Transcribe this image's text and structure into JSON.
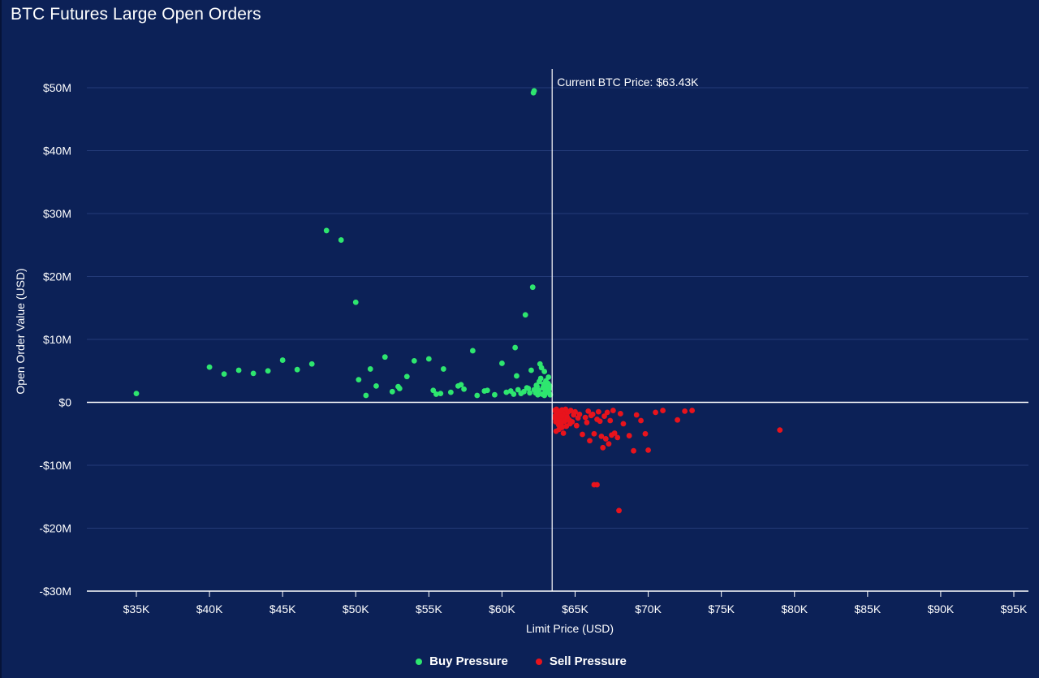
{
  "chart_data": {
    "type": "scatter",
    "title": "BTC Futures Large Open Orders",
    "xlabel": "Limit Price (USD)",
    "ylabel": "Open Order Value (USD)",
    "xlim": [
      33000,
      96000
    ],
    "ylim": [
      -30,
      55
    ],
    "x_ticks": [
      35000,
      40000,
      45000,
      50000,
      55000,
      60000,
      65000,
      70000,
      75000,
      80000,
      85000,
      90000,
      95000
    ],
    "x_tick_labels": [
      "$35K",
      "$40K",
      "$45K",
      "$50K",
      "$55K",
      "$60K",
      "$65K",
      "$70K",
      "$75K",
      "$80K",
      "$85K",
      "$90K",
      "$95K"
    ],
    "y_ticks": [
      50,
      40,
      30,
      20,
      10,
      0,
      -10,
      -20,
      -30
    ],
    "y_tick_labels": [
      "$50M",
      "$40M",
      "$30M",
      "$20M",
      "$10M",
      "$0",
      "-$10M",
      "-$20M",
      "-$30M"
    ],
    "grid": true,
    "legend_position": "bottom-center",
    "current_price": {
      "value": 63430,
      "label": "Current BTC Price: $63.43K"
    },
    "series": [
      {
        "name": "Buy Pressure",
        "color": "#2ee66f",
        "points": [
          [
            35000,
            1.4
          ],
          [
            40000,
            5.6
          ],
          [
            41000,
            4.5
          ],
          [
            42000,
            5.1
          ],
          [
            43000,
            4.6
          ],
          [
            44000,
            5.0
          ],
          [
            45000,
            6.7
          ],
          [
            46000,
            5.2
          ],
          [
            47000,
            6.1
          ],
          [
            48000,
            27.3
          ],
          [
            49000,
            25.8
          ],
          [
            50000,
            15.9
          ],
          [
            50200,
            3.6
          ],
          [
            50700,
            1.1
          ],
          [
            51000,
            5.3
          ],
          [
            51400,
            2.6
          ],
          [
            52000,
            7.2
          ],
          [
            52500,
            1.7
          ],
          [
            52900,
            2.5
          ],
          [
            53000,
            2.2
          ],
          [
            53500,
            4.1
          ],
          [
            54000,
            6.6
          ],
          [
            55000,
            6.9
          ],
          [
            55300,
            1.9
          ],
          [
            55500,
            1.3
          ],
          [
            55800,
            1.4
          ],
          [
            56000,
            5.3
          ],
          [
            56500,
            1.6
          ],
          [
            57000,
            2.6
          ],
          [
            57200,
            2.8
          ],
          [
            57400,
            2.1
          ],
          [
            58000,
            8.2
          ],
          [
            58300,
            1.1
          ],
          [
            58800,
            1.8
          ],
          [
            59000,
            1.9
          ],
          [
            59500,
            1.2
          ],
          [
            60000,
            6.2
          ],
          [
            60300,
            1.6
          ],
          [
            60600,
            1.8
          ],
          [
            60900,
            8.7
          ],
          [
            61000,
            4.2
          ],
          [
            61100,
            2.0
          ],
          [
            61300,
            1.4
          ],
          [
            61500,
            1.7
          ],
          [
            61600,
            13.9
          ],
          [
            61800,
            2.2
          ],
          [
            62000,
            5.1
          ],
          [
            62100,
            18.3
          ],
          [
            62150,
            49.2
          ],
          [
            62200,
            49.5
          ],
          [
            62300,
            1.5
          ],
          [
            62400,
            2.5
          ],
          [
            62500,
            1.9
          ],
          [
            62600,
            6.1
          ],
          [
            62700,
            5.5
          ],
          [
            62800,
            2.3
          ],
          [
            62900,
            4.9
          ],
          [
            62950,
            1.6
          ],
          [
            63000,
            3.4
          ],
          [
            63050,
            2.8
          ],
          [
            63100,
            1.8
          ],
          [
            63150,
            3.0
          ],
          [
            63200,
            1.5
          ],
          [
            63250,
            2.2
          ],
          [
            63300,
            1.2
          ],
          [
            62650,
            3.8
          ],
          [
            62750,
            1.3
          ],
          [
            62850,
            2.9
          ],
          [
            63020,
            1.9
          ],
          [
            63120,
            2.5
          ],
          [
            62450,
            1.2
          ],
          [
            62550,
            3.3
          ],
          [
            61900,
            1.5
          ],
          [
            61700,
            2.3
          ],
          [
            60800,
            1.3
          ],
          [
            62200,
            2.0
          ],
          [
            62350,
            2.7
          ],
          [
            63180,
            4.0
          ],
          [
            63280,
            2.6
          ],
          [
            62900,
            1.1
          ]
        ]
      },
      {
        "name": "Sell Pressure",
        "color": "#e8131c",
        "points": [
          [
            63600,
            -1.3
          ],
          [
            63650,
            -2.1
          ],
          [
            63700,
            -2.8
          ],
          [
            63750,
            -1.7
          ],
          [
            63800,
            -3.2
          ],
          [
            63850,
            -2.4
          ],
          [
            63900,
            -1.5
          ],
          [
            63950,
            -2.9
          ],
          [
            64000,
            -2.0
          ],
          [
            64050,
            -3.5
          ],
          [
            64100,
            -1.2
          ],
          [
            64150,
            -2.6
          ],
          [
            64200,
            -4.9
          ],
          [
            64250,
            -1.9
          ],
          [
            64300,
            -3.0
          ],
          [
            63620,
            -2.5
          ],
          [
            63680,
            -3.1
          ],
          [
            63720,
            -1.1
          ],
          [
            63780,
            -2.3
          ],
          [
            63820,
            -1.8
          ],
          [
            63880,
            -3.6
          ],
          [
            63920,
            -2.7
          ],
          [
            63980,
            -1.4
          ],
          [
            64020,
            -3.3
          ],
          [
            64080,
            -2.2
          ],
          [
            63700,
            -4.6
          ],
          [
            63900,
            -4.3
          ],
          [
            64100,
            -4.0
          ],
          [
            64400,
            -3.8
          ],
          [
            64500,
            -1.6
          ],
          [
            64600,
            -2.8
          ],
          [
            64700,
            -1.3
          ],
          [
            64800,
            -3.1
          ],
          [
            64900,
            -2.0
          ],
          [
            65000,
            -1.5
          ],
          [
            65100,
            -3.7
          ],
          [
            65300,
            -1.9
          ],
          [
            65500,
            -5.1
          ],
          [
            65700,
            -2.4
          ],
          [
            65900,
            -1.4
          ],
          [
            66000,
            -6.1
          ],
          [
            66100,
            -2.1
          ],
          [
            66300,
            -5.0
          ],
          [
            66300,
            -13.1
          ],
          [
            66500,
            -13.1
          ],
          [
            66500,
            -2.7
          ],
          [
            66600,
            -1.5
          ],
          [
            66700,
            -3.0
          ],
          [
            66800,
            -5.4
          ],
          [
            66900,
            -7.2
          ],
          [
            67000,
            -2.2
          ],
          [
            67100,
            -5.8
          ],
          [
            67200,
            -1.6
          ],
          [
            67300,
            -6.6
          ],
          [
            67400,
            -2.9
          ],
          [
            67500,
            -5.2
          ],
          [
            67600,
            -1.3
          ],
          [
            67700,
            -4.9
          ],
          [
            67900,
            -5.6
          ],
          [
            68000,
            -17.2
          ],
          [
            68100,
            -1.8
          ],
          [
            68300,
            -3.4
          ],
          [
            68700,
            -5.3
          ],
          [
            69000,
            -7.7
          ],
          [
            69200,
            -2.0
          ],
          [
            69500,
            -2.9
          ],
          [
            69800,
            -5.0
          ],
          [
            70000,
            -7.6
          ],
          [
            70500,
            -1.6
          ],
          [
            71000,
            -1.3
          ],
          [
            72000,
            -2.8
          ],
          [
            72500,
            -1.4
          ],
          [
            73000,
            -1.3
          ],
          [
            79000,
            -4.4
          ],
          [
            64350,
            -1.1
          ],
          [
            64450,
            -2.3
          ],
          [
            64650,
            -3.4
          ],
          [
            65200,
            -2.5
          ],
          [
            65800,
            -3.2
          ],
          [
            66200,
            -1.9
          ]
        ]
      }
    ]
  }
}
